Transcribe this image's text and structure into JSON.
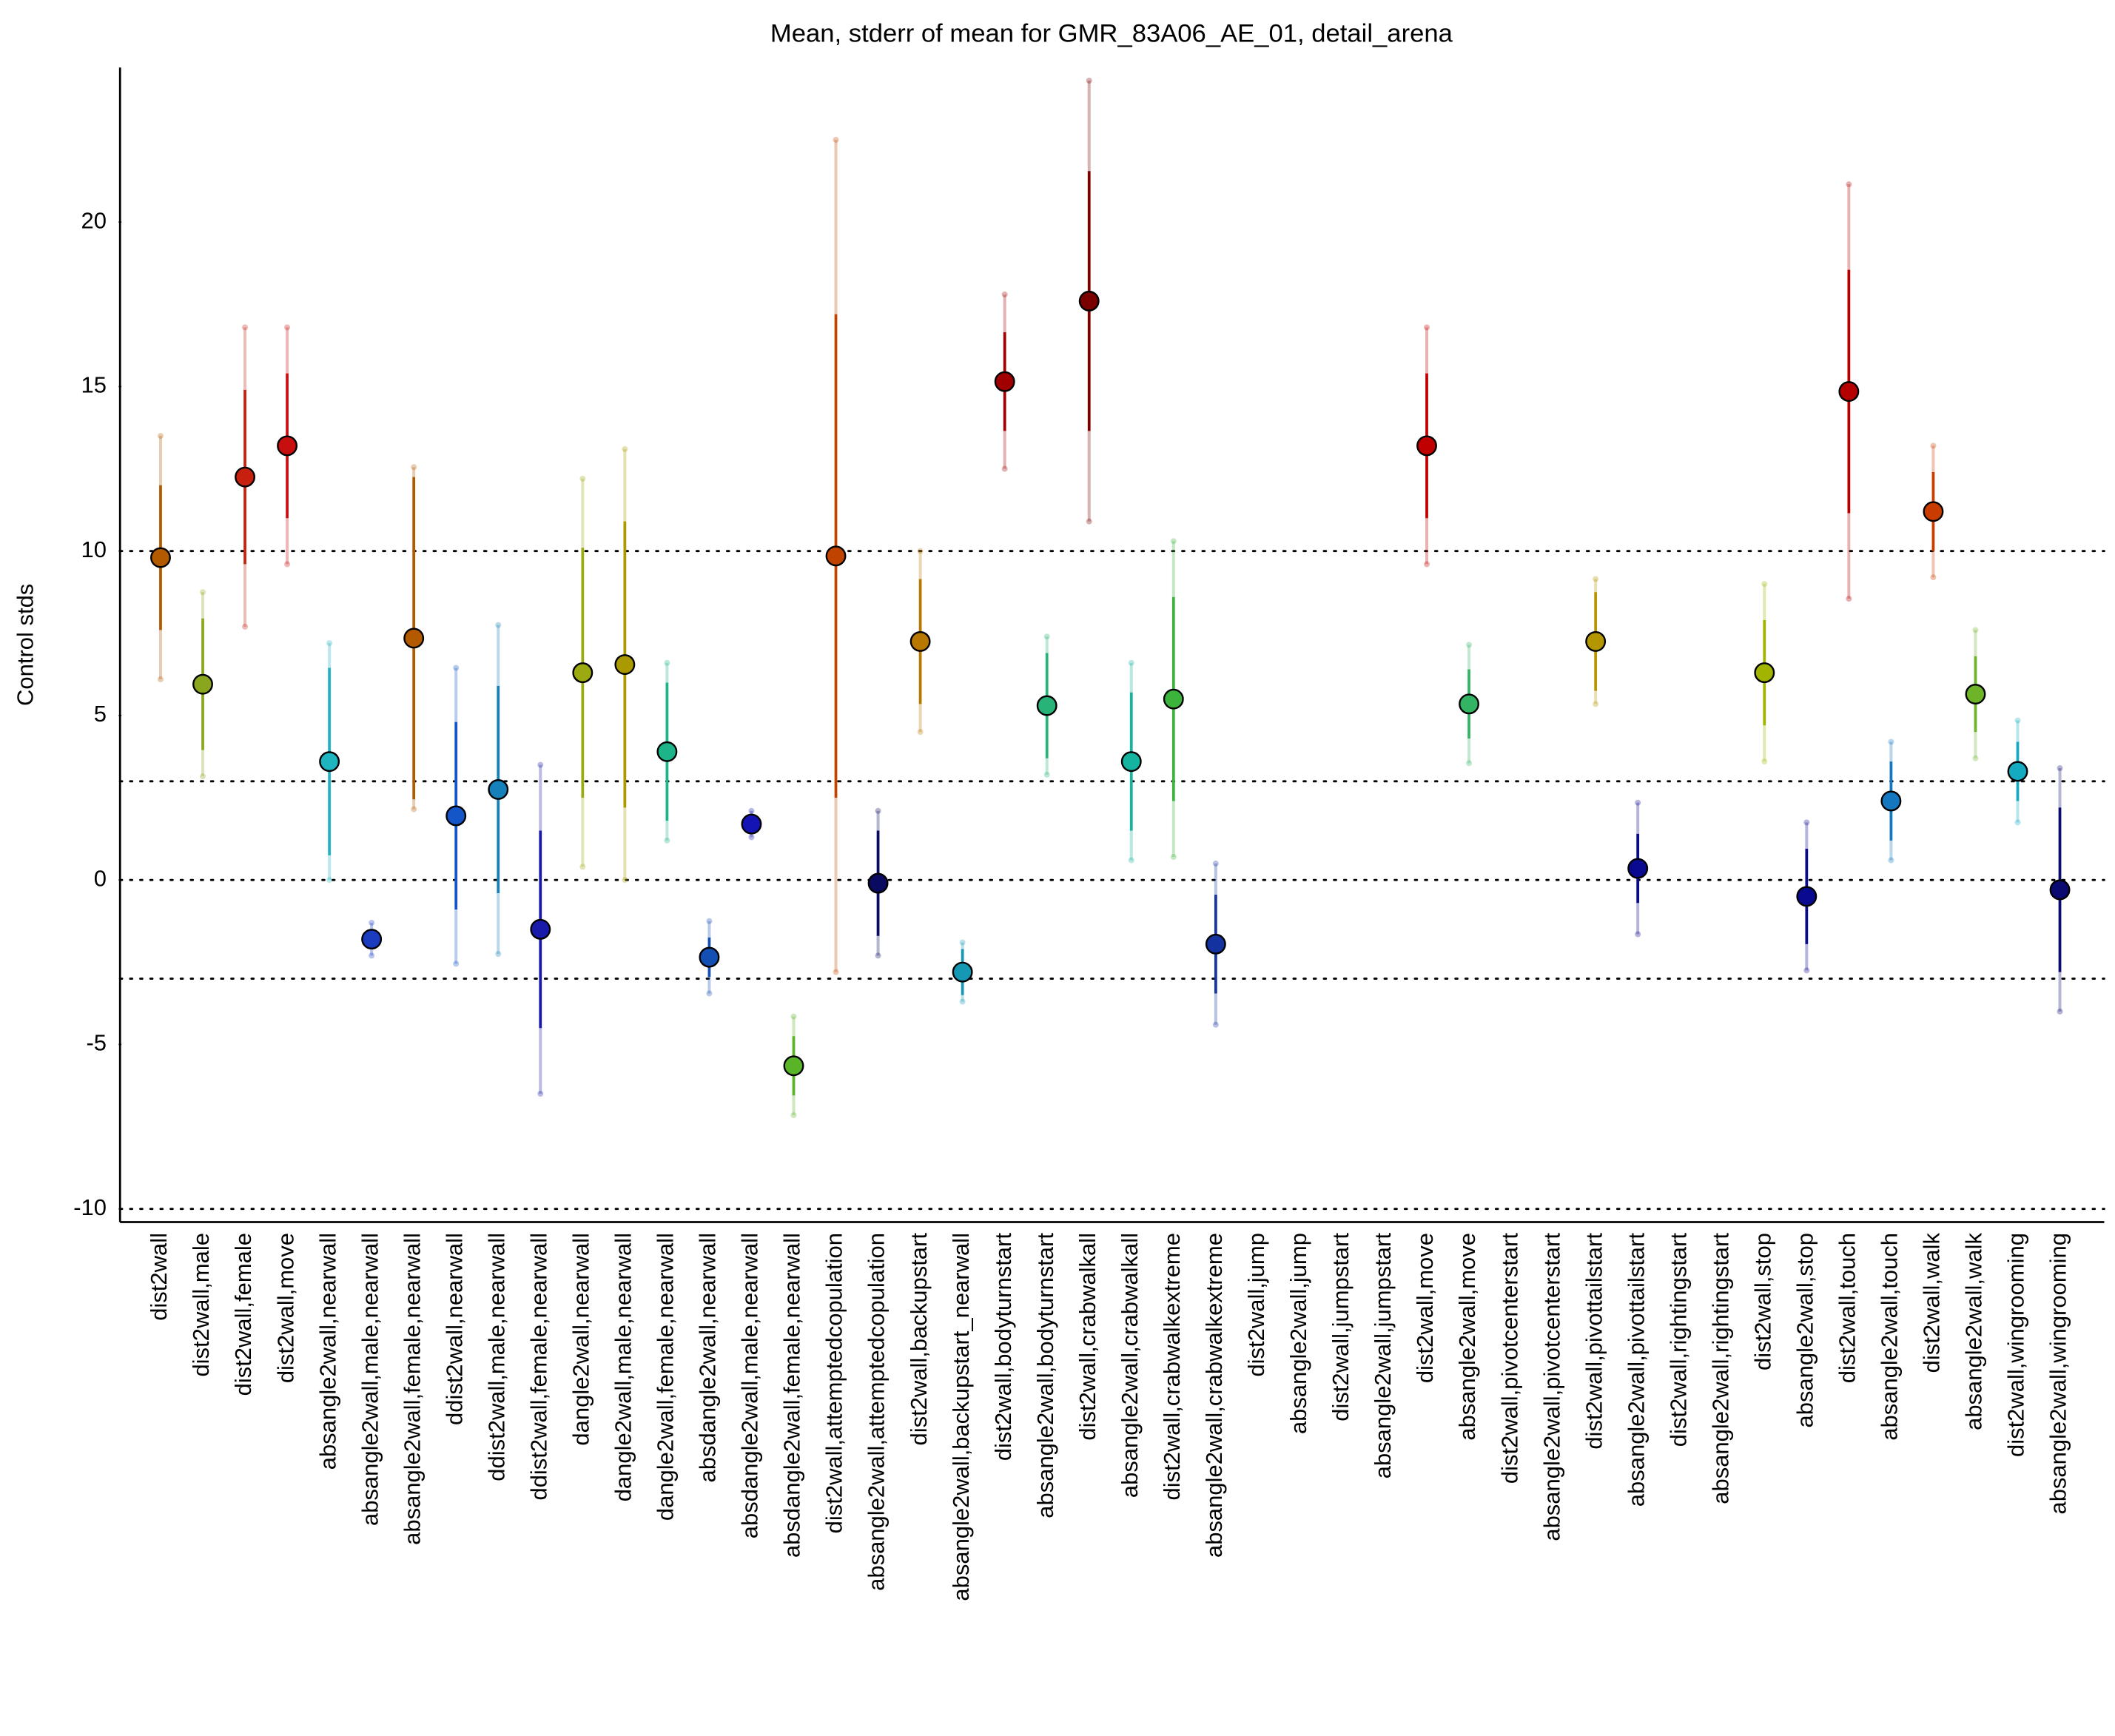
{
  "chart_data": {
    "type": "errorbar",
    "title": "Mean, stderr of mean for GMR_83A06_AE_01, detail_arena",
    "ylabel": "Control stds",
    "categories": [
      "dist2wall",
      "dist2wall,male",
      "dist2wall,female",
      "dist2wall,move",
      "absangle2wall,nearwall",
      "absangle2wall,male,nearwall",
      "absangle2wall,female,nearwall",
      "ddist2wall,nearwall",
      "ddist2wall,male,nearwall",
      "ddist2wall,female,nearwall",
      "dangle2wall,nearwall",
      "dangle2wall,male,nearwall",
      "dangle2wall,female,nearwall",
      "absdangle2wall,nearwall",
      "absdangle2wall,male,nearwall",
      "absdangle2wall,female,nearwall",
      "dist2wall,attemptedcopulation",
      "absangle2wall,attemptedcopulation",
      "dist2wall,backupstart",
      "absangle2wall,backupstart_nearwall",
      "dist2wall,bodyturnstart",
      "absangle2wall,bodyturnstart",
      "dist2wall,crabwalkall",
      "absangle2wall,crabwalkall",
      "dist2wall,crabwalkextreme",
      "absangle2wall,crabwalkextreme",
      "dist2wall,jump",
      "absangle2wall,jump",
      "dist2wall,jumpstart",
      "absangle2wall,jumpstart",
      "dist2wall,move",
      "absangle2wall,move",
      "dist2wall,pivotcenterstart",
      "absangle2wall,pivotcenterstart",
      "dist2wall,pivottailstart",
      "absangle2wall,pivottailstart",
      "dist2wall,rightingstart",
      "absangle2wall,rightingstart",
      "dist2wall,stop",
      "absangle2wall,stop",
      "dist2wall,touch",
      "absangle2wall,touch",
      "dist2wall,walk",
      "absangle2wall,walk",
      "dist2wall,wingrooming",
      "absangle2wall,wingrooming"
    ],
    "values": [
      9.8,
      5.95,
      12.25,
      13.2,
      3.6,
      -1.8,
      7.35,
      1.95,
      2.75,
      -1.5,
      6.3,
      6.55,
      3.9,
      -2.35,
      1.7,
      -5.65,
      9.85,
      -0.1,
      7.25,
      -2.8,
      15.15,
      5.3,
      17.6,
      3.6,
      5.5,
      -1.95,
      null,
      null,
      null,
      null,
      13.2,
      5.35,
      null,
      null,
      7.25,
      0.35,
      null,
      null,
      6.3,
      -0.5,
      14.85,
      2.4,
      11.2,
      5.65,
      3.3,
      -0.3
    ],
    "errors": [
      2.2,
      2,
      2.65,
      2.2,
      2.85,
      0.3,
      4.9,
      2.85,
      3.15,
      3,
      3.8,
      4.35,
      2.1,
      0.6,
      0.3,
      0.9,
      7.35,
      1.6,
      1.9,
      0.7,
      1.5,
      1.6,
      3.95,
      2.1,
      3.1,
      1.5,
      null,
      null,
      null,
      null,
      2.2,
      1.05,
      null,
      null,
      1.5,
      1.05,
      null,
      null,
      1.6,
      1.45,
      3.7,
      1.2,
      1.2,
      1.15,
      0.9,
      2.5
    ],
    "outer_errors": [
      3.7,
      2.8,
      4.55,
      3.6,
      3.6,
      0.5,
      5.2,
      4.5,
      5,
      5,
      5.9,
      6.55,
      2.7,
      1.1,
      0.4,
      1.5,
      12.65,
      2.2,
      2.75,
      0.9,
      2.65,
      2.1,
      6.7,
      3,
      4.8,
      2.45,
      null,
      null,
      null,
      null,
      3.6,
      1.8,
      null,
      null,
      1.9,
      2,
      null,
      null,
      2.7,
      2.25,
      6.3,
      1.8,
      2,
      1.95,
      1.55,
      3.7
    ],
    "colors": [
      "#b35900",
      "#8aa61e",
      "#c8200f",
      "#c80f0f",
      "#1eb4c0",
      "#1c3cc0",
      "#b35a00",
      "#1455c8",
      "#1680b8",
      "#1a1aaa",
      "#9aaa10",
      "#aa9a00",
      "#1eb48a",
      "#1450b4",
      "#1414b4",
      "#5ab428",
      "#c04400",
      "#0a0a60",
      "#b87800",
      "#1498b4",
      "#a00000",
      "#28b478",
      "#7a0000",
      "#14b4a0",
      "#3cb43c",
      "#1432a0",
      "#999999",
      "#999999",
      "#999999",
      "#999999",
      "#c00000",
      "#32b464",
      "#999999",
      "#999999",
      "#b49600",
      "#0a0a90",
      "#999999",
      "#999999",
      "#a0b400",
      "#0a0a90",
      "#b40000",
      "#1478c0",
      "#c83c00",
      "#6eb428",
      "#14aac0",
      "#0a0a70"
    ],
    "ylim": [
      -10.4,
      24.7
    ],
    "yticks": [
      -10,
      -5,
      0,
      5,
      10,
      15,
      20
    ],
    "hlines": [
      -10,
      -3,
      0,
      3,
      10
    ]
  }
}
